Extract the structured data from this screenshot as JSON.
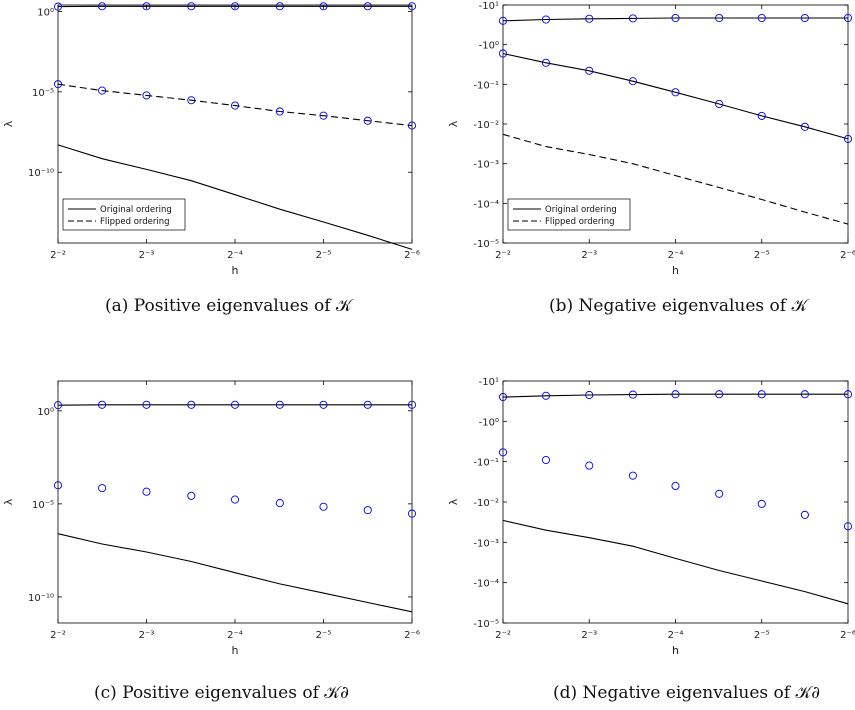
{
  "chart_data": [
    {
      "type": "line",
      "caption": "(a) Positive eigenvalues of 𝒦",
      "xlabel": "h",
      "ylabel": "λ",
      "x_scale": "log2-reversed",
      "y_scale": "log",
      "x_tick_labels": [
        "2⁻²",
        "2⁻³",
        "2⁻⁴",
        "2⁻⁵",
        "2⁻⁶"
      ],
      "y_tick_labels": [
        "10⁰",
        "10⁻⁵",
        "10⁻¹⁰"
      ],
      "legend": {
        "placement": "bottom-left",
        "entries": [
          "Original ordering",
          "Flipped ordering"
        ]
      },
      "series": [
        {
          "name": "Original ordering",
          "style": "solid",
          "markers": true,
          "values": [
            [
              0.25,
              2.0
            ],
            [
              0.177,
              2.1
            ],
            [
              0.125,
              2.1
            ],
            [
              0.088,
              2.1
            ],
            [
              0.0625,
              2.1
            ],
            [
              0.044,
              2.1
            ],
            [
              0.03125,
              2.1
            ],
            [
              0.0221,
              2.1
            ],
            [
              0.015625,
              2.1
            ]
          ]
        },
        {
          "name": "Flipped ordering",
          "style": "dashed",
          "markers": true,
          "values": [
            [
              0.25,
              3e-05
            ],
            [
              0.177,
              1.2e-05
            ],
            [
              0.125,
              6e-06
            ],
            [
              0.088,
              3e-06
            ],
            [
              0.0625,
              1.4e-06
            ],
            [
              0.044,
              6e-07
            ],
            [
              0.03125,
              3.3e-07
            ],
            [
              0.0221,
              1.6e-07
            ],
            [
              0.015625,
              8e-08
            ]
          ]
        },
        {
          "name": "Original ordering",
          "style": "solid",
          "markers": false,
          "values": [
            [
              0.25,
              5e-09
            ],
            [
              0.177,
              7e-10
            ],
            [
              0.125,
              1.5e-10
            ],
            [
              0.088,
              3e-11
            ],
            [
              0.0625,
              4e-12
            ],
            [
              0.044,
              5e-13
            ],
            [
              0.03125,
              8e-14
            ],
            [
              0.0221,
              1.2e-14
            ],
            [
              0.015625,
              1.6e-15
            ]
          ]
        }
      ]
    },
    {
      "type": "line",
      "caption": "(b) Negative eigenvalues of 𝒦",
      "xlabel": "h",
      "ylabel": "λ",
      "x_scale": "log2-reversed",
      "y_scale": "log (negative values, magnitude)",
      "x_tick_labels": [
        "2⁻²",
        "2⁻³",
        "2⁻⁴",
        "2⁻⁵",
        "2⁻⁶"
      ],
      "y_tick_labels": [
        "-10¹",
        "-10⁰",
        "-10⁻¹",
        "-10⁻²",
        "-10⁻³",
        "-10⁻⁴",
        "-10⁻⁵"
      ],
      "legend": {
        "placement": "bottom-left",
        "entries": [
          "Original ordering",
          "Flipped ordering"
        ]
      },
      "series": [
        {
          "name": "Original ordering",
          "style": "solid",
          "markers": true,
          "values": [
            [
              0.25,
              -4.0
            ],
            [
              0.177,
              -4.3
            ],
            [
              0.125,
              -4.5
            ],
            [
              0.088,
              -4.6
            ],
            [
              0.0625,
              -4.7
            ],
            [
              0.044,
              -4.7
            ],
            [
              0.03125,
              -4.7
            ],
            [
              0.0221,
              -4.7
            ],
            [
              0.015625,
              -4.7
            ]
          ]
        },
        {
          "name": "Original ordering",
          "style": "solid",
          "markers": true,
          "values": [
            [
              0.25,
              -0.6
            ],
            [
              0.177,
              -0.35
            ],
            [
              0.125,
              -0.22
            ],
            [
              0.088,
              -0.12
            ],
            [
              0.0625,
              -0.063
            ],
            [
              0.044,
              -0.032
            ],
            [
              0.03125,
              -0.016
            ],
            [
              0.0221,
              -0.0085
            ],
            [
              0.015625,
              -0.0042
            ]
          ]
        },
        {
          "name": "Flipped ordering",
          "style": "dashed",
          "markers": false,
          "values": [
            [
              0.25,
              -0.0055
            ],
            [
              0.177,
              -0.0027
            ],
            [
              0.125,
              -0.0017
            ],
            [
              0.088,
              -0.001
            ],
            [
              0.0625,
              -0.0005
            ],
            [
              0.044,
              -0.00025
            ],
            [
              0.03125,
              -0.000125
            ],
            [
              0.0221,
              -6e-05
            ],
            [
              0.015625,
              -3e-05
            ]
          ]
        }
      ]
    },
    {
      "type": "scatter",
      "caption": "(c) Positive eigenvalues of 𝒦∂",
      "xlabel": "h",
      "ylabel": "λ",
      "x_scale": "log2-reversed",
      "y_scale": "log",
      "x_tick_labels": [
        "2⁻²",
        "2⁻³",
        "2⁻⁴",
        "2⁻⁵",
        "2⁻⁶"
      ],
      "y_tick_labels": [
        "10⁰",
        "10⁻⁵",
        "10⁻¹⁰"
      ],
      "series": [
        {
          "style": "solid",
          "markers": true,
          "values": [
            [
              0.25,
              2.0
            ],
            [
              0.177,
              2.1
            ],
            [
              0.125,
              2.1
            ],
            [
              0.088,
              2.1
            ],
            [
              0.0625,
              2.1
            ],
            [
              0.044,
              2.1
            ],
            [
              0.03125,
              2.1
            ],
            [
              0.0221,
              2.1
            ],
            [
              0.015625,
              2.1
            ]
          ]
        },
        {
          "style": "none",
          "markers": true,
          "values": [
            [
              0.25,
              0.0001
            ],
            [
              0.177,
              7e-05
            ],
            [
              0.125,
              4.5e-05
            ],
            [
              0.088,
              2.7e-05
            ],
            [
              0.0625,
              1.7e-05
            ],
            [
              0.044,
              1.1e-05
            ],
            [
              0.03125,
              7e-06
            ],
            [
              0.0221,
              4.6e-06
            ],
            [
              0.015625,
              3e-06
            ]
          ]
        },
        {
          "style": "solid",
          "markers": false,
          "values": [
            [
              0.25,
              2.5e-07
            ],
            [
              0.177,
              7e-08
            ],
            [
              0.125,
              2.6e-08
            ],
            [
              0.088,
              8e-09
            ],
            [
              0.0625,
              2e-09
            ],
            [
              0.044,
              5e-10
            ],
            [
              0.03125,
              1.6e-10
            ],
            [
              0.0221,
              5e-11
            ],
            [
              0.015625,
              1.6e-11
            ]
          ]
        }
      ]
    },
    {
      "type": "scatter",
      "caption": "(d) Negative eigenvalues of 𝒦∂",
      "xlabel": "h",
      "ylabel": "λ",
      "x_scale": "log2-reversed",
      "y_scale": "log (negative values, magnitude)",
      "x_tick_labels": [
        "2⁻²",
        "2⁻³",
        "2⁻⁴",
        "2⁻⁵",
        "2⁻⁶"
      ],
      "y_tick_labels": [
        "-10¹",
        "-10⁰",
        "-10⁻¹",
        "-10⁻²",
        "-10⁻³",
        "-10⁻⁴",
        "-10⁻⁵"
      ],
      "series": [
        {
          "style": "solid",
          "markers": true,
          "values": [
            [
              0.25,
              -4.0
            ],
            [
              0.177,
              -4.3
            ],
            [
              0.125,
              -4.5
            ],
            [
              0.088,
              -4.6
            ],
            [
              0.0625,
              -4.7
            ],
            [
              0.044,
              -4.7
            ],
            [
              0.03125,
              -4.7
            ],
            [
              0.0221,
              -4.7
            ],
            [
              0.015625,
              -4.7
            ]
          ]
        },
        {
          "style": "none",
          "markers": true,
          "values": [
            [
              0.25,
              -0.17
            ],
            [
              0.177,
              -0.11
            ],
            [
              0.125,
              -0.08
            ],
            [
              0.088,
              -0.045
            ],
            [
              0.0625,
              -0.025
            ],
            [
              0.044,
              -0.016
            ],
            [
              0.03125,
              -0.009
            ],
            [
              0.0221,
              -0.0048
            ],
            [
              0.015625,
              -0.0025
            ]
          ]
        },
        {
          "style": "solid",
          "markers": false,
          "values": [
            [
              0.25,
              -0.0035
            ],
            [
              0.177,
              -0.002
            ],
            [
              0.125,
              -0.0013
            ],
            [
              0.088,
              -0.0008
            ],
            [
              0.0625,
              -0.0004
            ],
            [
              0.044,
              -0.0002
            ],
            [
              0.03125,
              -0.00011
            ],
            [
              0.0221,
              -6e-05
            ],
            [
              0.015625,
              -3e-05
            ]
          ]
        }
      ]
    }
  ]
}
